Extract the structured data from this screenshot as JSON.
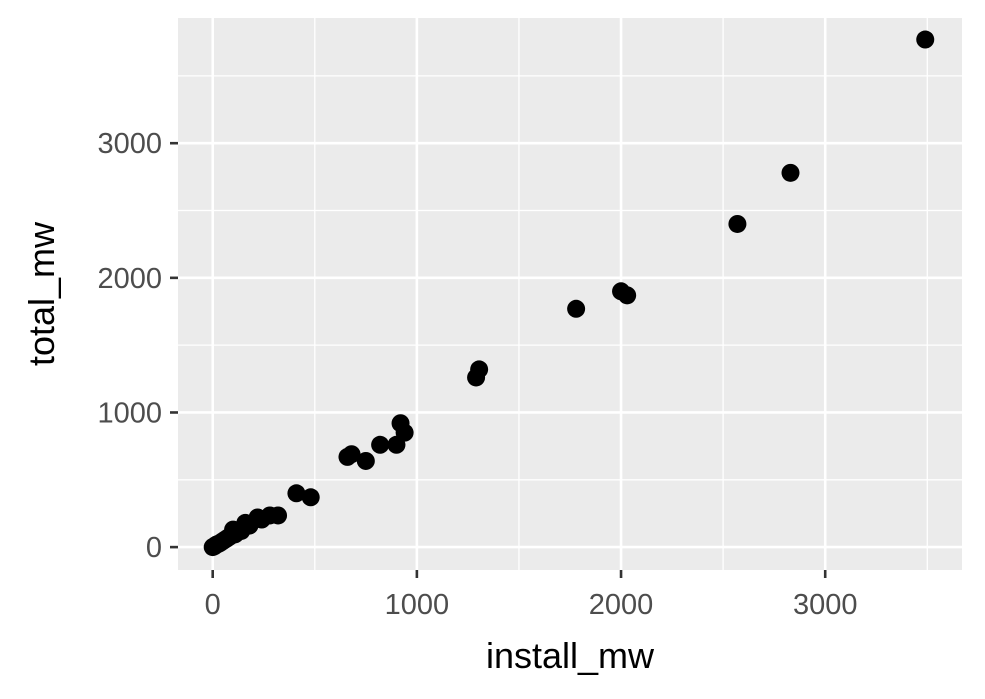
{
  "chart_data": {
    "type": "scatter",
    "title": "",
    "xlabel": "install_mw",
    "ylabel": "total_mw",
    "xlim": [
      -170,
      3670
    ],
    "ylim": [
      -170,
      3930
    ],
    "x_ticks": [
      0,
      1000,
      2000,
      3000
    ],
    "x_tick_labels": [
      "0",
      "1000",
      "2000",
      "3000"
    ],
    "y_ticks": [
      0,
      1000,
      2000,
      3000
    ],
    "y_tick_labels": [
      "0",
      "1000",
      "2000",
      "3000"
    ],
    "grid": true,
    "legend": "none",
    "colors": {
      "panel_background": "#ebebeb",
      "grid_line": "#ffffff",
      "point": "#000000",
      "tick_label": "#4d4d4d",
      "tick_mark": "#333333"
    },
    "points": [
      {
        "x": 0,
        "y": 0
      },
      {
        "x": 5,
        "y": 5
      },
      {
        "x": 10,
        "y": 8
      },
      {
        "x": 15,
        "y": 15
      },
      {
        "x": 20,
        "y": 20
      },
      {
        "x": 30,
        "y": 25
      },
      {
        "x": 40,
        "y": 35
      },
      {
        "x": 50,
        "y": 45
      },
      {
        "x": 60,
        "y": 55
      },
      {
        "x": 70,
        "y": 65
      },
      {
        "x": 80,
        "y": 75
      },
      {
        "x": 90,
        "y": 85
      },
      {
        "x": 100,
        "y": 130
      },
      {
        "x": 110,
        "y": 95
      },
      {
        "x": 120,
        "y": 110
      },
      {
        "x": 140,
        "y": 120
      },
      {
        "x": 160,
        "y": 180
      },
      {
        "x": 180,
        "y": 160
      },
      {
        "x": 220,
        "y": 220
      },
      {
        "x": 240,
        "y": 205
      },
      {
        "x": 280,
        "y": 235
      },
      {
        "x": 320,
        "y": 235
      },
      {
        "x": 410,
        "y": 400
      },
      {
        "x": 480,
        "y": 370
      },
      {
        "x": 660,
        "y": 670
      },
      {
        "x": 680,
        "y": 690
      },
      {
        "x": 750,
        "y": 640
      },
      {
        "x": 820,
        "y": 760
      },
      {
        "x": 900,
        "y": 760
      },
      {
        "x": 920,
        "y": 920
      },
      {
        "x": 940,
        "y": 850
      },
      {
        "x": 1290,
        "y": 1260
      },
      {
        "x": 1305,
        "y": 1320
      },
      {
        "x": 1780,
        "y": 1770
      },
      {
        "x": 2000,
        "y": 1900
      },
      {
        "x": 2030,
        "y": 1870
      },
      {
        "x": 2570,
        "y": 2400
      },
      {
        "x": 2830,
        "y": 2780
      },
      {
        "x": 3490,
        "y": 3770
      }
    ]
  }
}
